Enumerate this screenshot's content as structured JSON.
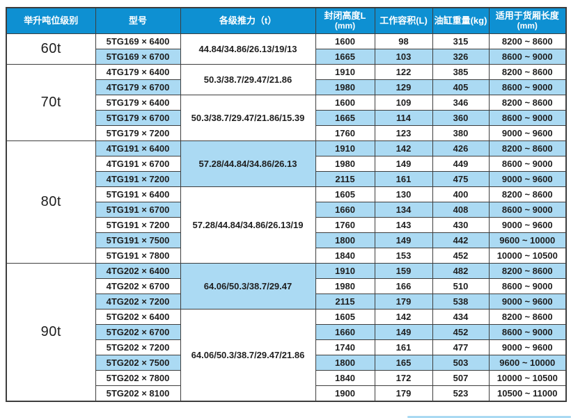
{
  "colors": {
    "header_bg": "#0E90D2",
    "header_text": "#FFFFFF",
    "row_shaded_bg": "#ABDAF3",
    "row_bg": "#FFFFFF",
    "border": "#3D3D3D",
    "text": "#1E1E1E",
    "accent_line": "#A9D9F2"
  },
  "table": {
    "columns": [
      {
        "id": "tonnage",
        "label": "举升吨位级别",
        "sub": ""
      },
      {
        "id": "model",
        "label": "型号",
        "sub": ""
      },
      {
        "id": "thrust",
        "label": "各级推力（t）",
        "sub": ""
      },
      {
        "id": "closed-height",
        "label": "封闭高度L",
        "sub": "(mm)"
      },
      {
        "id": "working-volume",
        "label": "工作容积(L)",
        "sub": ""
      },
      {
        "id": "cylinder-weight",
        "label": "油缸重量(kg)",
        "sub": ""
      },
      {
        "id": "box-length",
        "label": "适用于货厢长度",
        "sub": "(mm)"
      }
    ],
    "groups": [
      {
        "tonnage": "60t",
        "subgroups": [
          {
            "thrust": "44.84/34.86/26.13/19/13",
            "thrust_shaded": false,
            "rows": [
              {
                "model": "5TG169 × 6400",
                "closed_height_mm": "1600",
                "working_volume_l": "98",
                "cylinder_weight_kg": "315",
                "box_length_mm": "8200 ~ 8600",
                "shaded": false
              },
              {
                "model": "5TG169 × 6700",
                "closed_height_mm": "1665",
                "working_volume_l": "103",
                "cylinder_weight_kg": "326",
                "box_length_mm": "8600 ~ 9000",
                "shaded": true
              }
            ]
          }
        ]
      },
      {
        "tonnage": "70t",
        "subgroups": [
          {
            "thrust": "50.3/38.7/29.47/21.86",
            "thrust_shaded": false,
            "rows": [
              {
                "model": "4TG179 × 6400",
                "closed_height_mm": "1910",
                "working_volume_l": "122",
                "cylinder_weight_kg": "385",
                "box_length_mm": "8200 ~ 8600",
                "shaded": false
              },
              {
                "model": "4TG179 × 6700",
                "closed_height_mm": "1980",
                "working_volume_l": "129",
                "cylinder_weight_kg": "405",
                "box_length_mm": "8600 ~ 9000",
                "shaded": true
              }
            ]
          },
          {
            "thrust": "50.3/38.7/29.47/21.86/15.39",
            "thrust_shaded": false,
            "rows": [
              {
                "model": "5TG179 × 6400",
                "closed_height_mm": "1600",
                "working_volume_l": "109",
                "cylinder_weight_kg": "346",
                "box_length_mm": "8200 ~ 8600",
                "shaded": false
              },
              {
                "model": "5TG179 × 6700",
                "closed_height_mm": "1665",
                "working_volume_l": "114",
                "cylinder_weight_kg": "360",
                "box_length_mm": "8600 ~ 9000",
                "shaded": true
              },
              {
                "model": "5TG179 × 7200",
                "closed_height_mm": "1760",
                "working_volume_l": "123",
                "cylinder_weight_kg": "380",
                "box_length_mm": "9000 ~ 9600",
                "shaded": false
              }
            ]
          }
        ]
      },
      {
        "tonnage": "80t",
        "subgroups": [
          {
            "thrust": "57.28/44.84/34.86/26.13",
            "thrust_shaded": true,
            "rows": [
              {
                "model": "4TG191 × 6400",
                "closed_height_mm": "1910",
                "working_volume_l": "142",
                "cylinder_weight_kg": "426",
                "box_length_mm": "8200 ~ 8600",
                "shaded": true
              },
              {
                "model": "4TG191 × 6700",
                "closed_height_mm": "1980",
                "working_volume_l": "149",
                "cylinder_weight_kg": "449",
                "box_length_mm": "8600 ~ 9000",
                "shaded": false
              },
              {
                "model": "4TG191 × 7200",
                "closed_height_mm": "2115",
                "working_volume_l": "161",
                "cylinder_weight_kg": "475",
                "box_length_mm": "9000 ~ 9600",
                "shaded": true
              }
            ]
          },
          {
            "thrust": "57.28/44.84/34.86/26.13/19",
            "thrust_shaded": false,
            "rows": [
              {
                "model": "5TG191 × 6400",
                "closed_height_mm": "1605",
                "working_volume_l": "130",
                "cylinder_weight_kg": "400",
                "box_length_mm": "8200 ~ 8600",
                "shaded": false
              },
              {
                "model": "5TG191 × 6700",
                "closed_height_mm": "1660",
                "working_volume_l": "134",
                "cylinder_weight_kg": "408",
                "box_length_mm": "8600 ~ 9000",
                "shaded": true
              },
              {
                "model": "5TG191 × 7200",
                "closed_height_mm": "1760",
                "working_volume_l": "143",
                "cylinder_weight_kg": "430",
                "box_length_mm": "9000 ~ 9600",
                "shaded": false
              },
              {
                "model": "5TG191 × 7500",
                "closed_height_mm": "1800",
                "working_volume_l": "149",
                "cylinder_weight_kg": "442",
                "box_length_mm": "9600 ~ 10000",
                "shaded": true
              },
              {
                "model": "5TG191 × 7800",
                "closed_height_mm": "1840",
                "working_volume_l": "153",
                "cylinder_weight_kg": "452",
                "box_length_mm": "10000 ~ 10500",
                "shaded": false
              }
            ]
          }
        ]
      },
      {
        "tonnage": "90t",
        "subgroups": [
          {
            "thrust": "64.06/50.3/38.7/29.47",
            "thrust_shaded": true,
            "rows": [
              {
                "model": "4TG202 × 6400",
                "closed_height_mm": "1910",
                "working_volume_l": "159",
                "cylinder_weight_kg": "482",
                "box_length_mm": "8200 ~ 8600",
                "shaded": true
              },
              {
                "model": "4TG202 × 6700",
                "closed_height_mm": "1980",
                "working_volume_l": "166",
                "cylinder_weight_kg": "510",
                "box_length_mm": "8600 ~ 9000",
                "shaded": false
              },
              {
                "model": "4TG202 × 7200",
                "closed_height_mm": "2115",
                "working_volume_l": "179",
                "cylinder_weight_kg": "538",
                "box_length_mm": "9000 ~ 9600",
                "shaded": true
              }
            ]
          },
          {
            "thrust": "64.06/50.3/38.7/29.47/21.86",
            "thrust_shaded": false,
            "rows": [
              {
                "model": "5TG202 × 6400",
                "closed_height_mm": "1605",
                "working_volume_l": "142",
                "cylinder_weight_kg": "434",
                "box_length_mm": "8200 ~ 8600",
                "shaded": false
              },
              {
                "model": "5TG202 × 6700",
                "closed_height_mm": "1660",
                "working_volume_l": "149",
                "cylinder_weight_kg": "452",
                "box_length_mm": "8600 ~ 9000",
                "shaded": true
              },
              {
                "model": "5TG202 × 7200",
                "closed_height_mm": "1740",
                "working_volume_l": "161",
                "cylinder_weight_kg": "477",
                "box_length_mm": "9000 ~ 9600",
                "shaded": false
              },
              {
                "model": "5TG202 × 7500",
                "closed_height_mm": "1800",
                "working_volume_l": "165",
                "cylinder_weight_kg": "503",
                "box_length_mm": "9600 ~ 10000",
                "shaded": true
              },
              {
                "model": "5TG202 × 7800",
                "closed_height_mm": "1840",
                "working_volume_l": "172",
                "cylinder_weight_kg": "507",
                "box_length_mm": "10000 ~ 10500",
                "shaded": false
              },
              {
                "model": "5TG202 × 8100",
                "closed_height_mm": "1900",
                "working_volume_l": "179",
                "cylinder_weight_kg": "523",
                "box_length_mm": "10500 ~ 11000",
                "shaded": false
              }
            ]
          }
        ]
      }
    ]
  }
}
